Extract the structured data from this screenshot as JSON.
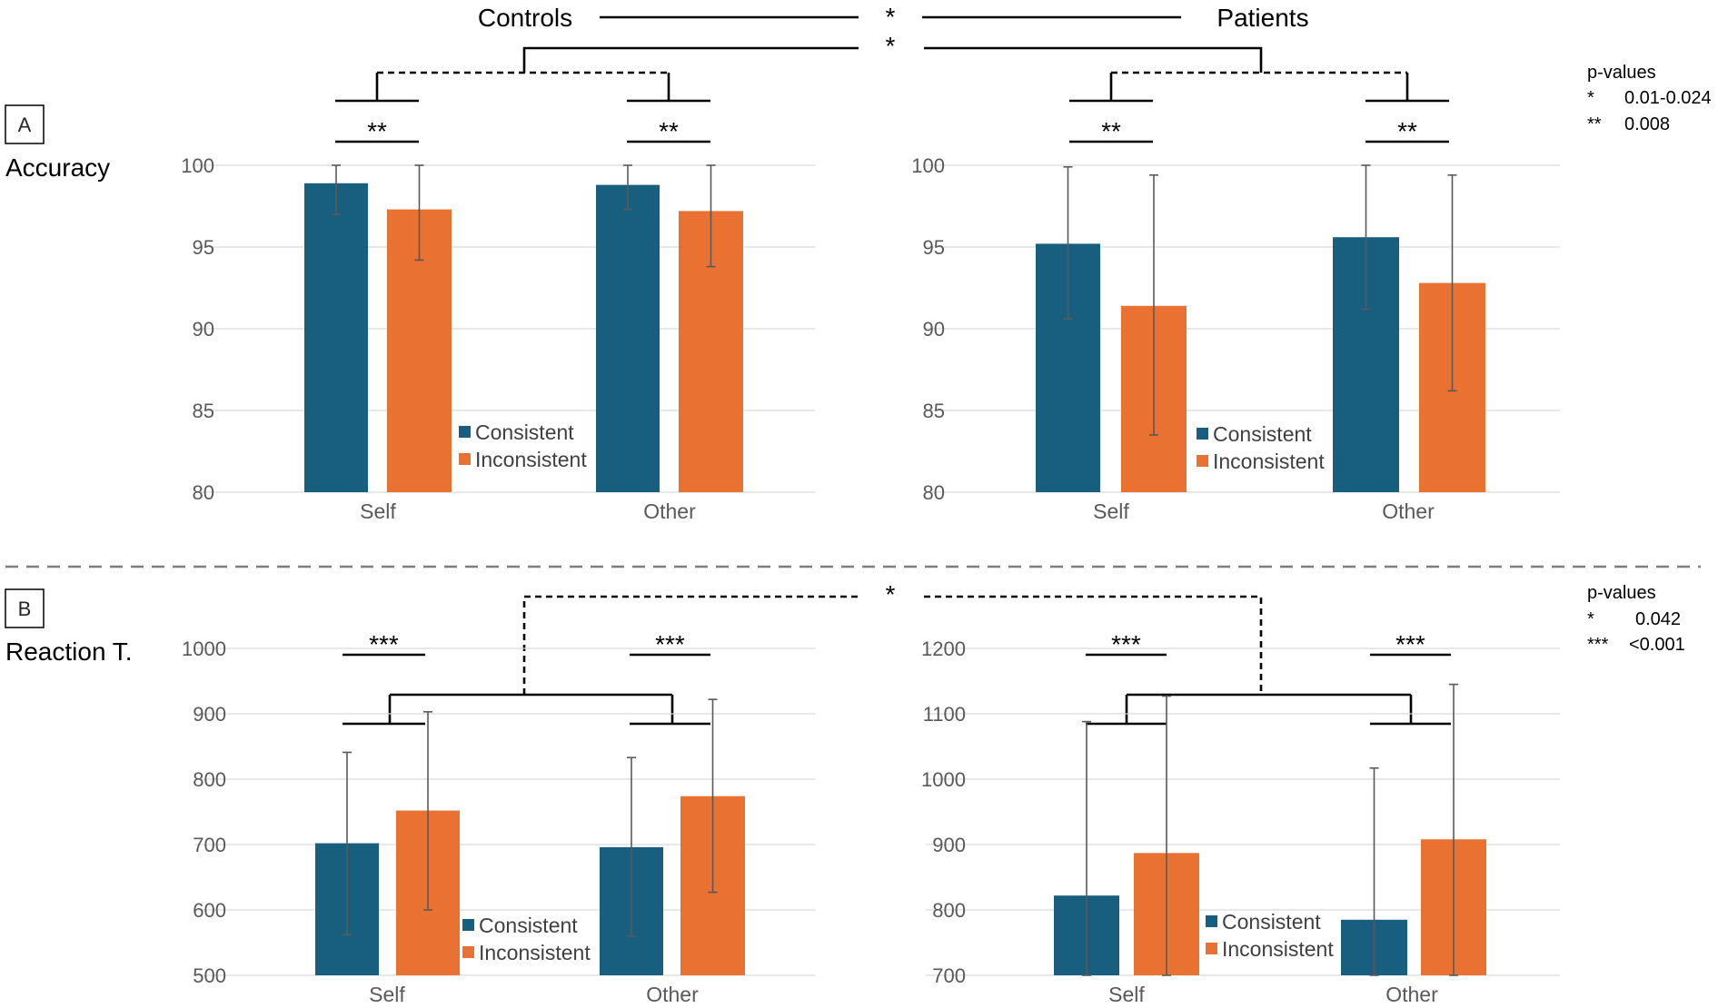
{
  "colors": {
    "consistent": "#185F7F",
    "inconsistent": "#E97132"
  },
  "top_labels": {
    "controls": "Controls",
    "patients": "Patients"
  },
  "panel_a": {
    "box_label": "A",
    "measure": "Accuracy",
    "group_sig": "*",
    "interaction_sig": "*",
    "pvalues": {
      "title": "p-values",
      "rows": [
        {
          "mark": "*",
          "value": "0.01-0.024"
        },
        {
          "mark": "**",
          "value": "0.008"
        }
      ]
    }
  },
  "panel_b": {
    "box_label": "B",
    "measure": "Reaction T.",
    "interaction_sig": "*",
    "pvalues": {
      "title": "p-values",
      "rows": [
        {
          "mark": "*",
          "value": "0.042"
        },
        {
          "mark": "***",
          "value": "<0.001"
        }
      ]
    }
  },
  "chart_data": [
    {
      "id": "accuracy-controls",
      "type": "bar",
      "group": "Controls",
      "measure": "Accuracy",
      "categories": [
        "Self",
        "Other"
      ],
      "ylim": [
        80,
        100
      ],
      "yticks": [
        "100",
        "95",
        "90",
        "85",
        "80"
      ],
      "series": [
        {
          "name": "Consistent",
          "values": [
            98.9,
            98.8
          ],
          "error_low": [
            97.0,
            97.3
          ],
          "error_high": [
            100.0,
            100.0
          ]
        },
        {
          "name": "Inconsistent",
          "values": [
            97.3,
            97.2
          ],
          "error_low": [
            94.2,
            93.8
          ],
          "error_high": [
            100.0,
            100.0
          ]
        }
      ],
      "significance": [
        "**",
        "**"
      ],
      "legend": [
        "Consistent",
        "Inconsistent"
      ]
    },
    {
      "id": "accuracy-patients",
      "type": "bar",
      "group": "Patients",
      "measure": "Accuracy",
      "categories": [
        "Self",
        "Other"
      ],
      "ylim": [
        80,
        100
      ],
      "yticks": [
        "100",
        "95",
        "90",
        "85",
        "80"
      ],
      "series": [
        {
          "name": "Consistent",
          "values": [
            95.2,
            95.6
          ],
          "error_low": [
            90.6,
            91.2
          ],
          "error_high": [
            99.9,
            100.0
          ]
        },
        {
          "name": "Inconsistent",
          "values": [
            91.4,
            92.8
          ],
          "error_low": [
            83.5,
            86.2
          ],
          "error_high": [
            99.4,
            99.4
          ]
        }
      ],
      "significance": [
        "**",
        "**"
      ],
      "legend": [
        "Consistent",
        "Inconsistent"
      ]
    },
    {
      "id": "rt-controls",
      "type": "bar",
      "group": "Controls",
      "measure": "Reaction T.",
      "categories": [
        "Self",
        "Other"
      ],
      "ylim": [
        500,
        1000
      ],
      "yticks": [
        "1000",
        "900",
        "800",
        "700",
        "600",
        "500"
      ],
      "series": [
        {
          "name": "Consistent",
          "values": [
            702,
            696
          ],
          "error_low": [
            562,
            560
          ],
          "error_high": [
            841,
            833
          ]
        },
        {
          "name": "Inconsistent",
          "values": [
            752,
            774
          ],
          "error_low": [
            600,
            627
          ],
          "error_high": [
            903,
            922
          ]
        }
      ],
      "significance": [
        "***",
        "***"
      ],
      "legend": [
        "Consistent",
        "Inconsistent"
      ]
    },
    {
      "id": "rt-patients",
      "type": "bar",
      "group": "Patients",
      "measure": "Reaction T.",
      "categories": [
        "Self",
        "Other"
      ],
      "ylim": [
        700,
        1200
      ],
      "yticks": [
        "1200",
        "1100",
        "1000",
        "900",
        "800",
        "700"
      ],
      "series": [
        {
          "name": "Consistent",
          "values": [
            822,
            785
          ],
          "error_low": [
            700,
            700
          ],
          "error_high": [
            1088,
            1017
          ]
        },
        {
          "name": "Inconsistent",
          "values": [
            887,
            908
          ],
          "error_low": [
            700,
            700
          ],
          "error_high": [
            1127,
            1145
          ]
        }
      ],
      "significance": [
        "***",
        "***"
      ],
      "legend": [
        "Consistent",
        "Inconsistent"
      ]
    }
  ]
}
